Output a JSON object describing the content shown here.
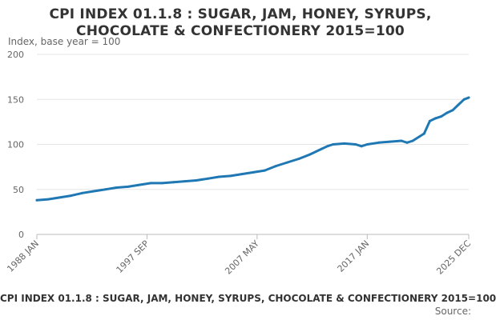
{
  "chart_data": {
    "type": "line",
    "title_line1": "CPI INDEX 01.1.8 : SUGAR, JAM, HONEY, SYRUPS,",
    "title_line2": "CHOCOLATE & CONFECTIONERY 2015=100",
    "ylabel": "Index, base year = 100",
    "xlabel": "",
    "ylim": [
      0,
      200
    ],
    "yticks": [
      0,
      50,
      100,
      150,
      200
    ],
    "ytick_labels": [
      "0",
      "50",
      "100",
      "150",
      "200"
    ],
    "xlim": [
      1988.0,
      2025.917
    ],
    "xticks": [
      1988.0,
      1997.667,
      2007.333,
      2017.0,
      2025.917
    ],
    "xtick_labels": [
      "1988 JAN",
      "1997 SEP",
      "2007 MAY",
      "2017 JAN",
      "2025 DEC"
    ],
    "grid": true,
    "legend": "none",
    "series": [
      {
        "name": "CPI INDEX 01.1.8 : SUGAR, JAM, HONEY, SYRUPS, CHOCOLATE & CONFECTIONERY 2015=100",
        "color": "#1f78b4",
        "x": [
          1988.0,
          1989.0,
          1990.0,
          1991.0,
          1992.0,
          1993.0,
          1994.0,
          1995.0,
          1996.0,
          1997.0,
          1998.0,
          1999.0,
          2000.0,
          2001.0,
          2002.0,
          2003.0,
          2004.0,
          2005.0,
          2006.0,
          2007.0,
          2008.0,
          2009.0,
          2010.0,
          2011.0,
          2012.0,
          2013.0,
          2013.5,
          2014.0,
          2015.0,
          2016.0,
          2016.5,
          2017.0,
          2018.0,
          2019.0,
          2020.0,
          2020.5,
          2021.0,
          2022.0,
          2022.5,
          2023.0,
          2023.5,
          2024.0,
          2024.5,
          2025.0,
          2025.5,
          2025.917
        ],
        "values": [
          38,
          39,
          41,
          43,
          46,
          48,
          50,
          52,
          53,
          55,
          57,
          57,
          58,
          59,
          60,
          62,
          64,
          65,
          67,
          69,
          71,
          76,
          80,
          84,
          89,
          95,
          98,
          100,
          101,
          100,
          98,
          100,
          102,
          103,
          104,
          102,
          104,
          112,
          126,
          129,
          131,
          135,
          138,
          144,
          150,
          152
        ]
      }
    ]
  },
  "footer": {
    "caption": "CPI INDEX 01.1.8 : SUGAR, JAM, HONEY, SYRUPS, CHOCOLATE & CONFECTIONERY 2015=100",
    "source": "Source:"
  }
}
